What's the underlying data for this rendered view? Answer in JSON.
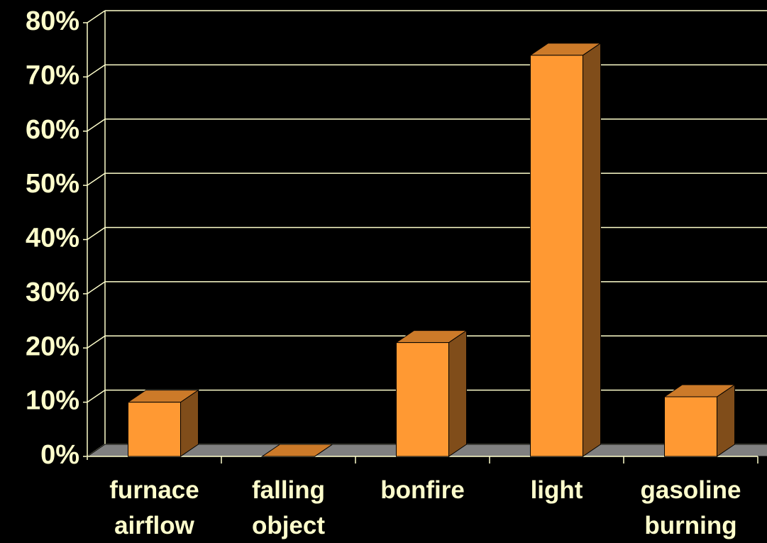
{
  "chart_data": {
    "type": "bar3d",
    "categories": [
      "furnace airflow",
      "falling object",
      "bonfire",
      "light",
      "gasoline burning"
    ],
    "values": [
      10,
      0,
      21,
      74,
      11
    ],
    "color": "#ff9933",
    "side_color": "#804d1a",
    "top_color": "#cc7a29",
    "ylim": [
      0,
      80
    ],
    "yticks": [
      {
        "value": 0,
        "label": "0%"
      },
      {
        "value": 10,
        "label": "10%"
      },
      {
        "value": 20,
        "label": "20%"
      },
      {
        "value": 30,
        "label": "30%"
      },
      {
        "value": 40,
        "label": "40%"
      },
      {
        "value": 50,
        "label": "50%"
      },
      {
        "value": 60,
        "label": "60%"
      },
      {
        "value": 70,
        "label": "70%"
      },
      {
        "value": 80,
        "label": "80%"
      }
    ],
    "grid": true
  }
}
